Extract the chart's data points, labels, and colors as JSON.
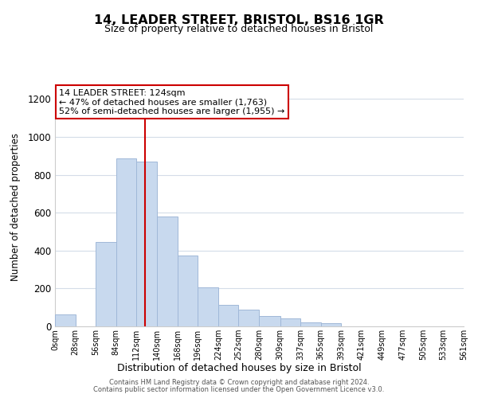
{
  "title": "14, LEADER STREET, BRISTOL, BS16 1GR",
  "subtitle": "Size of property relative to detached houses in Bristol",
  "xlabel": "Distribution of detached houses by size in Bristol",
  "ylabel": "Number of detached properties",
  "bar_values": [
    65,
    0,
    445,
    885,
    870,
    580,
    375,
    205,
    115,
    90,
    55,
    42,
    20,
    17,
    0,
    0,
    0,
    0,
    0,
    0
  ],
  "bin_edges": [
    0,
    28,
    56,
    84,
    112,
    140,
    168,
    196,
    224,
    252,
    280,
    309,
    337,
    365,
    393,
    421,
    449,
    477,
    505,
    533,
    561
  ],
  "tick_labels": [
    "0sqm",
    "28sqm",
    "56sqm",
    "84sqm",
    "112sqm",
    "140sqm",
    "168sqm",
    "196sqm",
    "224sqm",
    "252sqm",
    "280sqm",
    "309sqm",
    "337sqm",
    "365sqm",
    "393sqm",
    "421sqm",
    "449sqm",
    "477sqm",
    "505sqm",
    "533sqm",
    "561sqm"
  ],
  "bar_color": "#c8d9ee",
  "bar_edge_color": "#a0b8d8",
  "property_line_x": 124,
  "property_line_color": "#cc0000",
  "ylim": [
    0,
    1260
  ],
  "yticks": [
    0,
    200,
    400,
    600,
    800,
    1000,
    1200
  ],
  "annotation_title": "14 LEADER STREET: 124sqm",
  "annotation_line1": "← 47% of detached houses are smaller (1,763)",
  "annotation_line2": "52% of semi-detached houses are larger (1,955) →",
  "annotation_box_color": "#ffffff",
  "annotation_box_edge_color": "#cc0000",
  "footer_line1": "Contains HM Land Registry data © Crown copyright and database right 2024.",
  "footer_line2": "Contains public sector information licensed under the Open Government Licence v3.0.",
  "background_color": "#ffffff",
  "grid_color": "#d4dce8"
}
